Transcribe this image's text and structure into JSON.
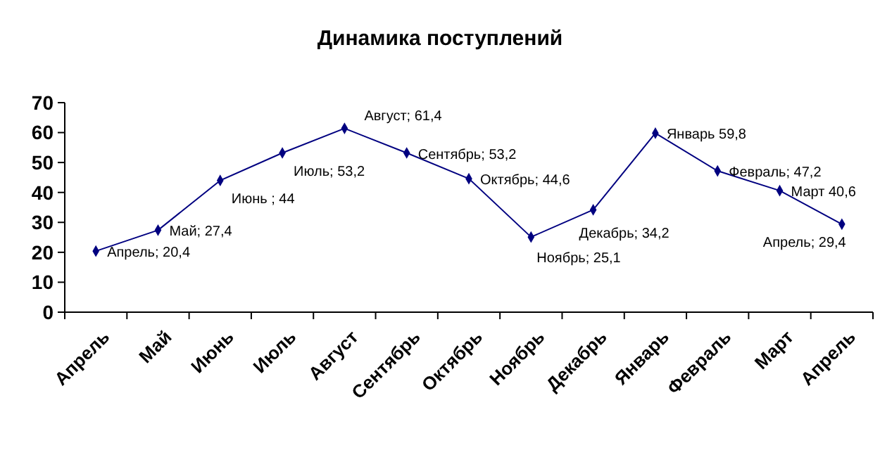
{
  "chart_data": {
    "type": "line",
    "title": "Динамика поступлений",
    "categories": [
      "Апрель",
      "Май",
      "Июнь",
      "Июль",
      "Август",
      "Сентябрь",
      "Октябрь",
      "Ноябрь",
      "Декабрь",
      "Январь",
      "Февраль",
      "Март",
      "Апрель"
    ],
    "series": [
      {
        "color": "#000080",
        "values": [
          20.4,
          27.4,
          44,
          53.2,
          61.4,
          53.2,
          44.6,
          25.1,
          34.2,
          59.8,
          47.2,
          40.6,
          29.4
        ],
        "value_labels": [
          "Апрель; 20,4",
          "Май; 27,4",
          "Июнь ; 44",
          "Июль; 53,2",
          "Август; 61,4",
          "Сентябрь; 53,2",
          "Октябрь; 44,6",
          "Ноябрь; 25,1",
          "Декабрь; 34,2",
          "Январь 59,8",
          "Февраль; 47,2",
          "Март 40,6",
          "Апрель; 29,4"
        ]
      }
    ],
    "ylim": [
      0,
      70
    ],
    "yticks": [
      0,
      10,
      20,
      30,
      40,
      50,
      60,
      70
    ],
    "marker": "diamond",
    "line_style": "solid",
    "grid": false
  }
}
